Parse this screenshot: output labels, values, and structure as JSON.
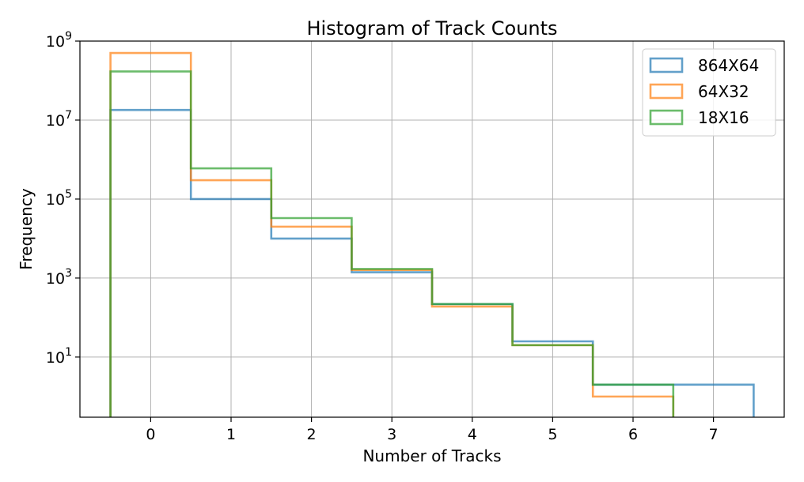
{
  "chart_data": {
    "type": "histogram-step",
    "title": "Histogram of Track Counts",
    "xlabel": "Number of Tracks",
    "ylabel": "Frequency",
    "y_scale": "log",
    "ylim": [
      0.3,
      1000000000
    ],
    "xlim": [
      -0.88,
      7.88
    ],
    "x_ticks": [
      0,
      1,
      2,
      3,
      4,
      5,
      6,
      7
    ],
    "y_ticks": [
      {
        "value": 10,
        "base": "10",
        "exp": "1"
      },
      {
        "value": 1000,
        "base": "10",
        "exp": "3"
      },
      {
        "value": 100000,
        "base": "10",
        "exp": "5"
      },
      {
        "value": 10000000,
        "base": "10",
        "exp": "7"
      },
      {
        "value": 1000000000,
        "base": "10",
        "exp": "9"
      }
    ],
    "grid": true,
    "legend_position": "top-right",
    "series": [
      {
        "name": "864X64",
        "color": "#1f77b4",
        "x": [
          0,
          1,
          2,
          3,
          4,
          5,
          6,
          7
        ],
        "values": [
          18000000,
          100000,
          10000,
          1400,
          220,
          25,
          2,
          2
        ]
      },
      {
        "name": "64X32",
        "color": "#ff7f0e",
        "x": [
          0,
          1,
          2,
          3,
          4,
          5,
          6
        ],
        "values": [
          500000000,
          300000,
          20000,
          1600,
          190,
          20,
          1
        ]
      },
      {
        "name": "18X16",
        "color": "#2ca02c",
        "x": [
          0,
          1,
          2,
          3,
          4,
          5,
          6
        ],
        "values": [
          170000000,
          600000,
          33000,
          1700,
          220,
          20,
          2
        ]
      }
    ]
  }
}
